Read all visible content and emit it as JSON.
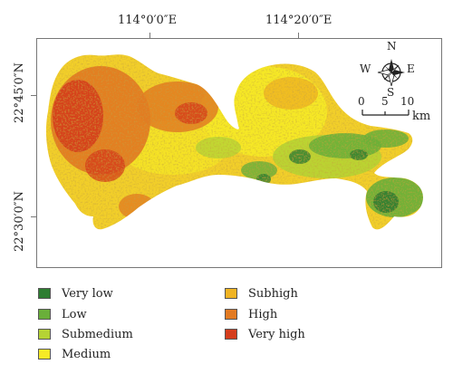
{
  "axes": {
    "lon_labels": [
      "114°0′0″E",
      "114°20′0″E"
    ],
    "lat_labels": [
      "22°45′0″N",
      "22°30′0″N"
    ]
  },
  "compass": {
    "north": "N",
    "south": "S",
    "east": "E",
    "west": "W"
  },
  "scale_bar": {
    "ticks": [
      "0",
      "5",
      "10"
    ],
    "unit": "km"
  },
  "legend": {
    "items": [
      {
        "label": "Very low",
        "color": "#2e7d32"
      },
      {
        "label": "Low",
        "color": "#6aaf3a"
      },
      {
        "label": "Submedium",
        "color": "#b5d334"
      },
      {
        "label": "Medium",
        "color": "#f6ea26"
      },
      {
        "label": "Subhigh",
        "color": "#f0b323"
      },
      {
        "label": "High",
        "color": "#e27a22"
      },
      {
        "label": "Very high",
        "color": "#d43d1c"
      }
    ]
  }
}
